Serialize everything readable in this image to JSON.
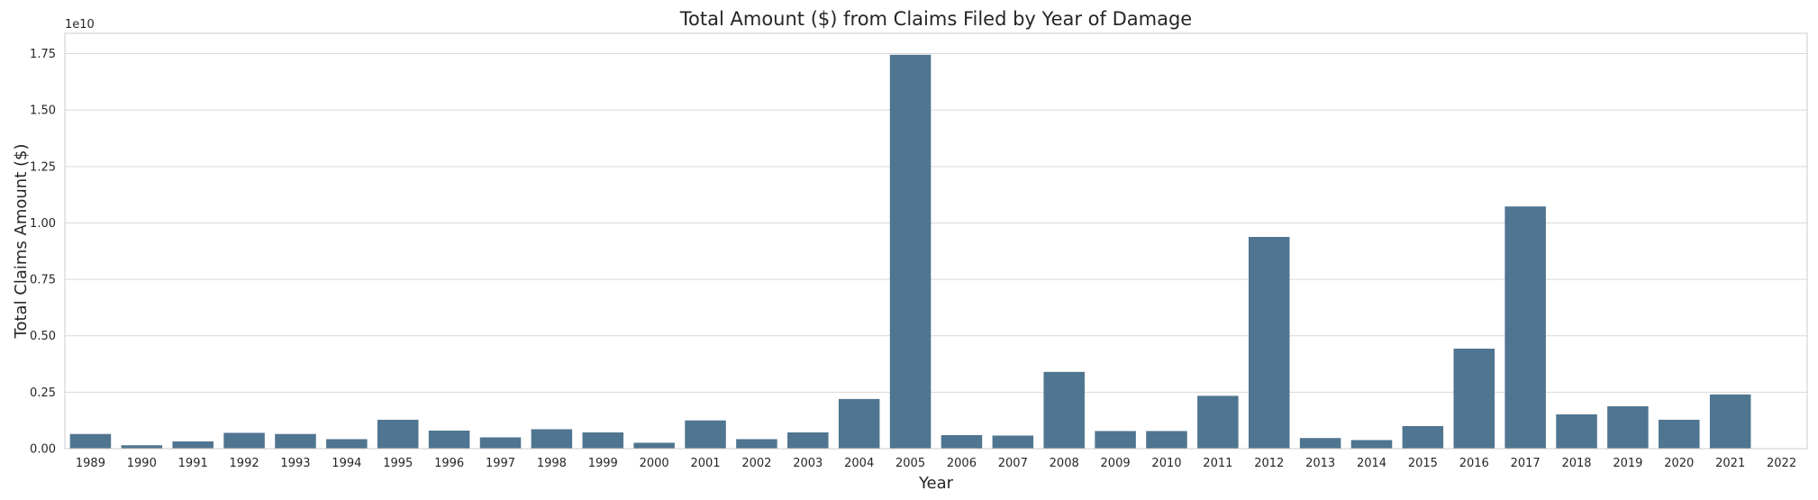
{
  "chart_data": {
    "type": "bar",
    "title": "Total Amount ($) from Claims Filed by Year of Damage",
    "xlabel": "Year",
    "ylabel": "Total Claims Amount ($)",
    "y_offset_label": "1e10",
    "ylim": [
      0,
      18400000000
    ],
    "y_ticks": [
      0,
      2500000000,
      5000000000,
      7500000000,
      10000000000,
      12500000000,
      15000000000,
      17500000000
    ],
    "y_tick_labels": [
      "0.00",
      "0.25",
      "0.50",
      "0.75",
      "1.00",
      "1.25",
      "1.50",
      "1.75"
    ],
    "grid": "horizontal",
    "bar_color": "#4f7590",
    "categories": [
      "1989",
      "1990",
      "1991",
      "1992",
      "1993",
      "1994",
      "1995",
      "1996",
      "1997",
      "1998",
      "1999",
      "2000",
      "2001",
      "2002",
      "2003",
      "2004",
      "2005",
      "2006",
      "2007",
      "2008",
      "2009",
      "2010",
      "2011",
      "2012",
      "2013",
      "2014",
      "2015",
      "2016",
      "2017",
      "2018",
      "2019",
      "2020",
      "2021",
      "2022"
    ],
    "values": [
      650000000,
      150000000,
      320000000,
      700000000,
      650000000,
      420000000,
      1280000000,
      800000000,
      500000000,
      860000000,
      720000000,
      260000000,
      1250000000,
      420000000,
      720000000,
      2200000000,
      17450000000,
      600000000,
      580000000,
      3400000000,
      780000000,
      780000000,
      2340000000,
      9380000000,
      470000000,
      380000000,
      1000000000,
      4430000000,
      10730000000,
      1520000000,
      1880000000,
      1280000000,
      2400000000,
      0
    ]
  }
}
